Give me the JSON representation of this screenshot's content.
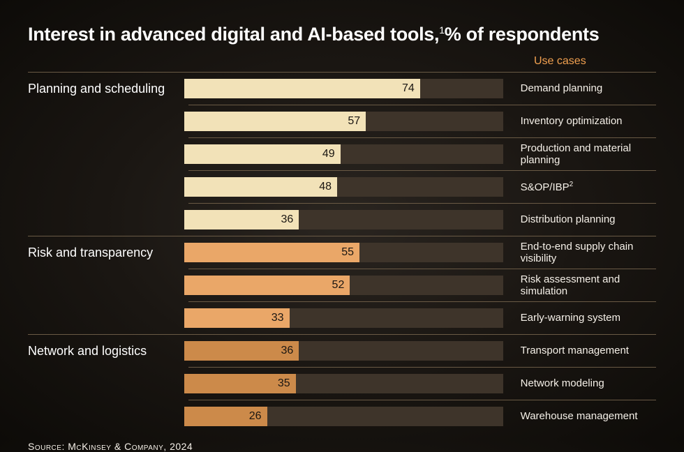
{
  "title_main": "Interest in advanced digital and AI-based tools,",
  "title_super": "1",
  "title_suffix": "% of respondents",
  "use_cases_header": "Use cases",
  "source": "Source: McKinsey & Company, 2024",
  "chart": {
    "type": "bar",
    "xlim": [
      0,
      100
    ],
    "track_color": "#3e342a",
    "background_gradient": [
      "#2a2520",
      "#1a1612",
      "#0d0b08"
    ],
    "divider_color": "#6a5a45",
    "value_text_color": "#1a1612",
    "groups": [
      {
        "category": "Planning and scheduling",
        "bar_color": "#f2e2b8",
        "rows": [
          {
            "value": 74,
            "use_case": "Demand planning"
          },
          {
            "value": 57,
            "use_case": "Inventory optimization"
          },
          {
            "value": 49,
            "use_case": "Production and material planning"
          },
          {
            "value": 48,
            "use_case": "S&OP/IBP",
            "super": "2"
          },
          {
            "value": 36,
            "use_case": "Distribution planning"
          }
        ]
      },
      {
        "category": "Risk and transparency",
        "bar_color": "#eaa768",
        "rows": [
          {
            "value": 55,
            "use_case": "End-to-end supply chain visibility"
          },
          {
            "value": 52,
            "use_case": "Risk assessment and simulation"
          },
          {
            "value": 33,
            "use_case": "Early-warning system"
          }
        ]
      },
      {
        "category": "Network and logistics",
        "bar_color": "#cc8a4a",
        "rows": [
          {
            "value": 36,
            "use_case": "Transport management"
          },
          {
            "value": 35,
            "use_case": "Network modeling"
          },
          {
            "value": 26,
            "use_case": "Warehouse management"
          }
        ]
      }
    ]
  }
}
